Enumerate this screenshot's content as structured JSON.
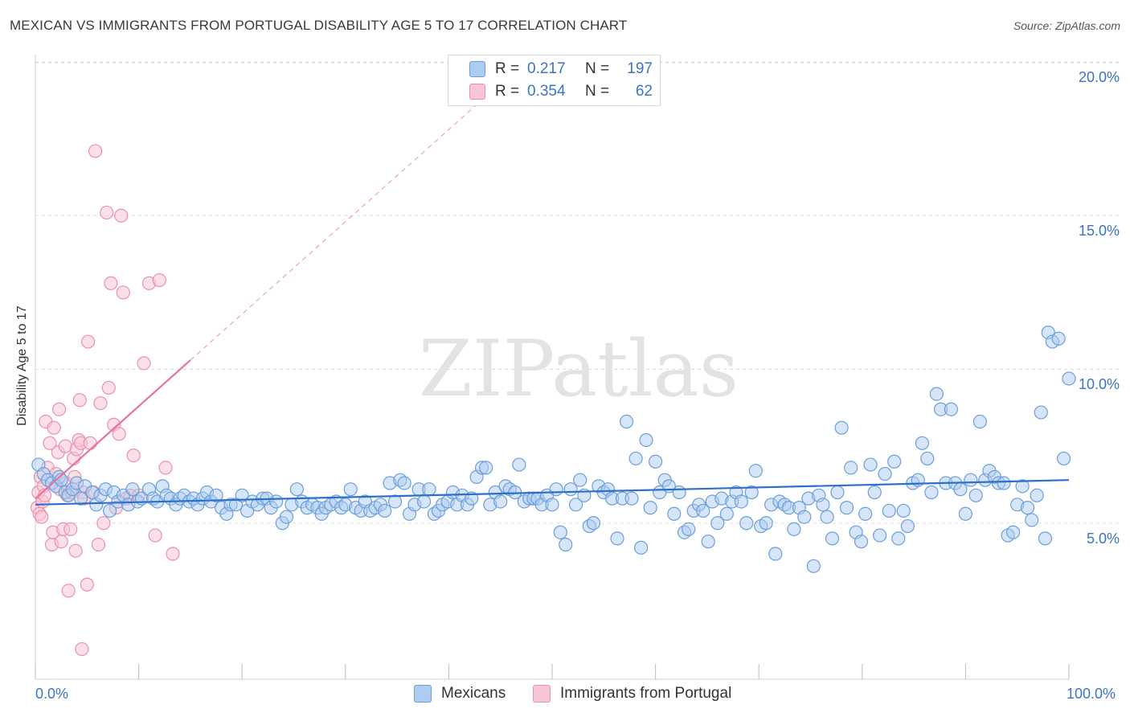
{
  "header": {
    "title": "MEXICAN VS IMMIGRANTS FROM PORTUGAL DISABILITY AGE 5 TO 17 CORRELATION CHART",
    "source": "Source: ZipAtlas.com"
  },
  "watermark": "ZIPatlas",
  "colors": {
    "blue_fill": "#aecbf0",
    "blue_stroke": "#6a9fdc",
    "blue_line": "#2f6fcc",
    "pink_fill": "#f7c6d6",
    "pink_stroke": "#ec8fae",
    "pink_line": "#e8729a",
    "tick_text": "#3b74c4",
    "grid": "#dddddd"
  },
  "legend_top": {
    "rows": [
      {
        "r_label": "R =",
        "r_value": "0.217",
        "n_label": "N =",
        "n_value": "197"
      },
      {
        "r_label": "R =",
        "r_value": "0.354",
        "n_label": "N =",
        "n_value": "62"
      }
    ]
  },
  "legend_bottom": {
    "items": [
      "Mexicans",
      "Immigrants from Portugal"
    ]
  },
  "chart_data": {
    "type": "scatter",
    "title": "MEXICAN VS IMMIGRANTS FROM PORTUGAL DISABILITY AGE 5 TO 17 CORRELATION CHART",
    "xlabel": "",
    "ylabel": "Disability Age 5 to 17",
    "xlim": [
      0,
      100
    ],
    "ylim": [
      0,
      20
    ],
    "x_tick_labels": [
      "0.0%",
      "100.0%"
    ],
    "y_ticks": [
      5,
      10,
      15,
      20
    ],
    "y_tick_labels": [
      "5.0%",
      "10.0%",
      "15.0%",
      "20.0%"
    ],
    "grid": "horizontal dashed",
    "series": [
      {
        "name": "Mexicans",
        "r": 0.217,
        "n": 197,
        "trend": {
          "x": [
            0,
            100
          ],
          "y": [
            5.6,
            6.4
          ]
        },
        "points": [
          [
            0.3,
            6.9
          ],
          [
            0.8,
            6.6
          ],
          [
            1.2,
            6.4
          ],
          [
            1.6,
            6.3
          ],
          [
            2.0,
            6.2
          ],
          [
            2.3,
            6.5
          ],
          [
            2.5,
            6.4
          ],
          [
            2.9,
            6.0
          ],
          [
            3.2,
            5.9
          ],
          [
            3.6,
            6.1
          ],
          [
            4.0,
            6.3
          ],
          [
            4.4,
            5.8
          ],
          [
            4.8,
            6.2
          ],
          [
            5.5,
            6.0
          ],
          [
            5.9,
            5.6
          ],
          [
            6.3,
            5.9
          ],
          [
            6.8,
            6.1
          ],
          [
            7.2,
            5.4
          ],
          [
            7.6,
            6.0
          ],
          [
            8.0,
            5.7
          ],
          [
            8.5,
            5.9
          ],
          [
            9.0,
            5.6
          ],
          [
            9.4,
            6.1
          ],
          [
            9.9,
            5.7
          ],
          [
            10.3,
            5.8
          ],
          [
            11.0,
            6.1
          ],
          [
            11.4,
            5.8
          ],
          [
            11.8,
            5.7
          ],
          [
            12.3,
            6.2
          ],
          [
            12.7,
            5.9
          ],
          [
            13.1,
            5.8
          ],
          [
            13.6,
            5.6
          ],
          [
            14.0,
            5.8
          ],
          [
            14.4,
            5.9
          ],
          [
            14.9,
            5.7
          ],
          [
            15.3,
            5.8
          ],
          [
            15.7,
            5.6
          ],
          [
            16.2,
            5.8
          ],
          [
            16.6,
            6.0
          ],
          [
            17.0,
            5.7
          ],
          [
            17.5,
            5.9
          ],
          [
            18.0,
            5.5
          ],
          [
            18.5,
            5.3
          ],
          [
            18.9,
            5.6
          ],
          [
            19.4,
            5.6
          ],
          [
            20.0,
            5.9
          ],
          [
            20.5,
            5.4
          ],
          [
            21.0,
            5.7
          ],
          [
            21.5,
            5.6
          ],
          [
            22.0,
            5.8
          ],
          [
            22.4,
            5.8
          ],
          [
            22.8,
            5.5
          ],
          [
            23.3,
            5.7
          ],
          [
            23.9,
            5.0
          ],
          [
            24.3,
            5.2
          ],
          [
            24.8,
            5.6
          ],
          [
            25.3,
            6.1
          ],
          [
            25.8,
            5.7
          ],
          [
            26.3,
            5.5
          ],
          [
            26.8,
            5.6
          ],
          [
            27.3,
            5.5
          ],
          [
            27.7,
            5.3
          ],
          [
            28.1,
            5.5
          ],
          [
            28.6,
            5.6
          ],
          [
            29.1,
            5.7
          ],
          [
            29.6,
            5.5
          ],
          [
            30.0,
            5.6
          ],
          [
            30.5,
            6.1
          ],
          [
            31.0,
            5.5
          ],
          [
            31.5,
            5.4
          ],
          [
            31.9,
            5.7
          ],
          [
            32.4,
            5.4
          ],
          [
            32.9,
            5.5
          ],
          [
            33.4,
            5.6
          ],
          [
            33.8,
            5.4
          ],
          [
            34.3,
            6.3
          ],
          [
            34.8,
            5.7
          ],
          [
            35.3,
            6.4
          ],
          [
            35.7,
            6.3
          ],
          [
            36.2,
            5.3
          ],
          [
            36.7,
            5.6
          ],
          [
            37.1,
            6.1
          ],
          [
            37.6,
            5.7
          ],
          [
            38.1,
            6.1
          ],
          [
            38.6,
            5.3
          ],
          [
            39.0,
            5.4
          ],
          [
            39.4,
            5.6
          ],
          [
            39.9,
            5.7
          ],
          [
            40.4,
            6.0
          ],
          [
            40.8,
            5.6
          ],
          [
            41.3,
            5.9
          ],
          [
            41.8,
            5.6
          ],
          [
            42.2,
            5.8
          ],
          [
            42.7,
            6.5
          ],
          [
            43.2,
            6.8
          ],
          [
            43.6,
            6.8
          ],
          [
            44.0,
            5.6
          ],
          [
            44.5,
            6.0
          ],
          [
            45.0,
            5.7
          ],
          [
            45.5,
            6.2
          ],
          [
            45.9,
            6.1
          ],
          [
            46.4,
            6.0
          ],
          [
            46.8,
            6.9
          ],
          [
            47.3,
            5.7
          ],
          [
            47.8,
            5.8
          ],
          [
            48.2,
            5.8
          ],
          [
            48.6,
            5.8
          ],
          [
            49.0,
            5.6
          ],
          [
            49.5,
            5.9
          ],
          [
            50.0,
            5.6
          ],
          [
            50.4,
            6.1
          ],
          [
            50.8,
            4.7
          ],
          [
            51.3,
            4.3
          ],
          [
            51.8,
            6.1
          ],
          [
            52.3,
            5.6
          ],
          [
            52.7,
            6.4
          ],
          [
            53.1,
            5.9
          ],
          [
            53.6,
            4.9
          ],
          [
            54.0,
            5.0
          ],
          [
            54.5,
            6.2
          ],
          [
            55.0,
            6.0
          ],
          [
            55.4,
            6.1
          ],
          [
            55.8,
            5.8
          ],
          [
            56.3,
            4.5
          ],
          [
            56.8,
            5.8
          ],
          [
            57.2,
            8.3
          ],
          [
            57.7,
            5.8
          ],
          [
            58.1,
            7.1
          ],
          [
            58.6,
            4.2
          ],
          [
            59.1,
            7.7
          ],
          [
            59.5,
            5.5
          ],
          [
            60.0,
            7.0
          ],
          [
            60.4,
            6.0
          ],
          [
            60.9,
            6.4
          ],
          [
            61.3,
            6.2
          ],
          [
            61.8,
            5.3
          ],
          [
            62.3,
            6.0
          ],
          [
            62.8,
            4.7
          ],
          [
            63.2,
            4.8
          ],
          [
            63.7,
            5.4
          ],
          [
            64.2,
            5.6
          ],
          [
            64.6,
            5.4
          ],
          [
            65.1,
            4.4
          ],
          [
            65.5,
            5.7
          ],
          [
            66.0,
            5.0
          ],
          [
            66.4,
            5.8
          ],
          [
            66.9,
            5.3
          ],
          [
            67.4,
            5.7
          ],
          [
            67.8,
            6.0
          ],
          [
            68.3,
            5.7
          ],
          [
            68.8,
            5.0
          ],
          [
            69.3,
            6.0
          ],
          [
            69.7,
            6.7
          ],
          [
            70.2,
            4.9
          ],
          [
            70.7,
            5.0
          ],
          [
            71.2,
            5.6
          ],
          [
            71.6,
            4.0
          ],
          [
            72.0,
            5.7
          ],
          [
            72.5,
            5.6
          ],
          [
            72.9,
            5.5
          ],
          [
            73.4,
            4.8
          ],
          [
            73.9,
            5.5
          ],
          [
            74.4,
            5.2
          ],
          [
            74.8,
            5.8
          ],
          [
            75.3,
            3.6
          ],
          [
            75.8,
            5.9
          ],
          [
            76.2,
            5.6
          ],
          [
            76.6,
            5.2
          ],
          [
            77.1,
            4.5
          ],
          [
            77.6,
            6.0
          ],
          [
            78.0,
            8.1
          ],
          [
            78.5,
            5.5
          ],
          [
            78.9,
            6.8
          ],
          [
            79.4,
            4.7
          ],
          [
            79.9,
            4.4
          ],
          [
            80.3,
            5.3
          ],
          [
            80.8,
            6.9
          ],
          [
            81.2,
            6.0
          ],
          [
            81.7,
            4.6
          ],
          [
            82.2,
            6.6
          ],
          [
            82.6,
            5.4
          ],
          [
            83.1,
            7.0
          ],
          [
            83.5,
            4.5
          ],
          [
            84.0,
            5.4
          ],
          [
            84.4,
            4.9
          ],
          [
            84.9,
            6.3
          ],
          [
            85.4,
            6.4
          ],
          [
            85.8,
            7.6
          ],
          [
            86.3,
            7.1
          ],
          [
            86.7,
            6.0
          ],
          [
            87.2,
            9.2
          ],
          [
            87.6,
            8.7
          ],
          [
            88.1,
            6.3
          ],
          [
            88.6,
            8.7
          ],
          [
            89.0,
            6.3
          ],
          [
            89.5,
            6.1
          ],
          [
            90.0,
            5.3
          ],
          [
            90.5,
            6.4
          ],
          [
            91.0,
            5.9
          ],
          [
            91.4,
            8.3
          ],
          [
            91.9,
            6.4
          ],
          [
            92.3,
            6.7
          ],
          [
            92.8,
            6.5
          ],
          [
            93.2,
            6.3
          ],
          [
            93.7,
            6.3
          ],
          [
            94.1,
            4.6
          ],
          [
            94.6,
            4.7
          ],
          [
            95.0,
            5.6
          ],
          [
            95.5,
            6.2
          ],
          [
            96.0,
            5.5
          ],
          [
            96.4,
            5.1
          ],
          [
            96.9,
            5.9
          ],
          [
            97.3,
            8.6
          ],
          [
            97.7,
            4.5
          ],
          [
            98.0,
            11.2
          ],
          [
            98.4,
            10.9
          ],
          [
            99.0,
            11.0
          ],
          [
            99.5,
            7.1
          ],
          [
            100.0,
            9.7
          ]
        ]
      },
      {
        "name": "Immigrants from Portugal",
        "r": 0.354,
        "n": 62,
        "trend": {
          "x": [
            0,
            15
          ],
          "y": [
            5.8,
            10.3
          ]
        },
        "trend_dashed_extension": {
          "x": [
            15,
            43
          ],
          "y": [
            10.3,
            18.7
          ]
        },
        "points": [
          [
            0.2,
            5.5
          ],
          [
            0.3,
            6.0
          ],
          [
            0.4,
            5.3
          ],
          [
            0.5,
            6.5
          ],
          [
            0.6,
            5.2
          ],
          [
            0.7,
            5.7
          ],
          [
            0.8,
            6.2
          ],
          [
            0.9,
            5.9
          ],
          [
            1.0,
            8.3
          ],
          [
            1.2,
            6.8
          ],
          [
            1.4,
            7.6
          ],
          [
            1.6,
            4.3
          ],
          [
            1.7,
            4.7
          ],
          [
            1.8,
            8.1
          ],
          [
            2.0,
            6.6
          ],
          [
            2.2,
            7.3
          ],
          [
            2.3,
            8.7
          ],
          [
            2.4,
            6.1
          ],
          [
            2.5,
            4.4
          ],
          [
            2.7,
            4.8
          ],
          [
            2.9,
            7.5
          ],
          [
            3.0,
            6.3
          ],
          [
            3.1,
            5.9
          ],
          [
            3.2,
            2.8
          ],
          [
            3.4,
            4.8
          ],
          [
            3.5,
            6.0
          ],
          [
            3.7,
            7.1
          ],
          [
            3.8,
            6.5
          ],
          [
            3.9,
            4.1
          ],
          [
            4.0,
            7.4
          ],
          [
            4.2,
            7.7
          ],
          [
            4.3,
            9.0
          ],
          [
            4.4,
            7.6
          ],
          [
            4.5,
            0.9
          ],
          [
            4.6,
            6.0
          ],
          [
            4.7,
            5.8
          ],
          [
            5.0,
            3.0
          ],
          [
            5.1,
            10.9
          ],
          [
            5.3,
            7.6
          ],
          [
            5.6,
            6.0
          ],
          [
            5.8,
            17.1
          ],
          [
            6.1,
            4.3
          ],
          [
            6.3,
            8.9
          ],
          [
            6.6,
            5.0
          ],
          [
            6.9,
            15.1
          ],
          [
            7.1,
            9.4
          ],
          [
            7.3,
            12.8
          ],
          [
            7.6,
            8.2
          ],
          [
            7.8,
            5.5
          ],
          [
            8.1,
            7.9
          ],
          [
            8.3,
            15.0
          ],
          [
            8.5,
            12.5
          ],
          [
            8.8,
            5.8
          ],
          [
            9.2,
            5.9
          ],
          [
            9.5,
            7.2
          ],
          [
            10.0,
            5.9
          ],
          [
            10.5,
            10.2
          ],
          [
            11.0,
            12.8
          ],
          [
            11.6,
            4.6
          ],
          [
            12.0,
            12.9
          ],
          [
            12.6,
            6.8
          ],
          [
            13.3,
            4.0
          ]
        ]
      }
    ]
  }
}
